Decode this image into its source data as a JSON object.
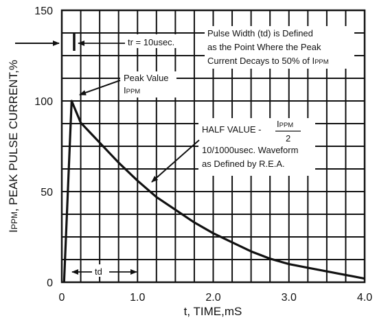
{
  "chart_data": {
    "type": "line",
    "title": "",
    "xlabel": "t, TIME,mS",
    "ylabel": "IPPM, PEAK PULSE CURRENT,%",
    "ylabel_parts": {
      "main": "I",
      "sub": "PPM",
      "rest": ", PEAK PULSE CURRENT,%"
    },
    "xlim": [
      0,
      4.0
    ],
    "ylim": [
      0,
      150
    ],
    "grid": true,
    "x_grid_step": 0.25,
    "y_grid_step": 12.5,
    "x_ticks": [
      0,
      1.0,
      2.0,
      3.0,
      4.0
    ],
    "x_tick_labels": [
      "0",
      "1.0",
      "2.0",
      "3.0",
      "4.0"
    ],
    "y_ticks": [
      0,
      50,
      100,
      150
    ],
    "y_tick_labels": [
      "0",
      "50",
      "100",
      "150"
    ],
    "series": [
      {
        "x": [
          0.03,
          0.13,
          0.25,
          0.5,
          0.75,
          1.0,
          1.25,
          1.5,
          1.75,
          2.0,
          2.25,
          2.5,
          2.75,
          3.0,
          3.25,
          3.5,
          3.75,
          4.0
        ],
        "y": [
          0,
          100,
          88,
          77,
          66,
          56,
          47,
          40,
          33,
          27,
          22,
          17,
          13,
          10,
          8,
          6,
          4,
          2
        ]
      }
    ],
    "annotations": {
      "tr_label": "tr = 10usec.",
      "pulse_width_lines": [
        "Pulse Width (td) is Defined",
        "as the Point Where the Peak"
      ],
      "pulse_width_line3_main": "Current Decays to 50% of I",
      "pulse_width_line3_sub": "PPM",
      "peak_label": "Peak Value",
      "peak_sym_main": "I",
      "peak_sym_sub": "PPM",
      "half_value_prefix": "HALF VALUE -",
      "half_value_num_main": "I",
      "half_value_num_sub": "PPM",
      "half_value_den": "2",
      "waveform_lines": [
        "10/1000usec. Waveform",
        "as Defined by R.E.A."
      ],
      "td_label": "td"
    }
  }
}
